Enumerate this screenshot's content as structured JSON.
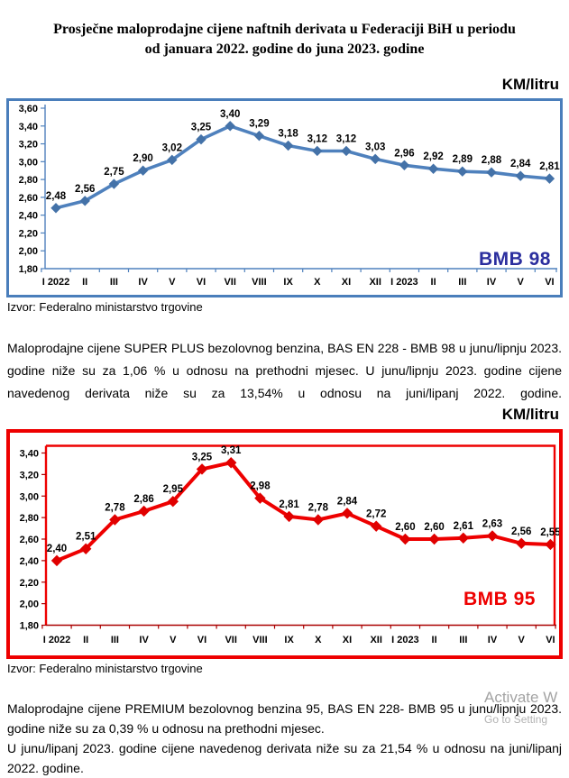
{
  "page": {
    "title_line1": "Prosječne maloprodajne cijene naftnih derivata u Federaciji BiH u periodu",
    "title_line2": "od januara 2022. godine do juna 2023. godine"
  },
  "paragraphs": {
    "p1": "Maloprodajne cijene SUPER PLUS bezolovnog benzina, BAS EN 228 - BMB 98 u junu/lipnju 2023. godine niže su za 1,06 % u odnosu na prethodni mjesec. U junu/lipnju 2023. godine cijene navedenog derivata niže su za 13,54% u odnosu na juni/lipanj 2022. godine.",
    "p2a": "Maloprodajne cijene PREMIUM bezolovnog benzina 95, BAS EN 228- BMB 95 u junu/lipnju 2023. godine niže su za 0,39 % u odnosu na prethodni mjesec.",
    "p2b": "U junu/lipanj 2023. godine cijene navedenog derivata niže su za 21,54 % u odnosu na juni/lipanj 2022. godine."
  },
  "watermark": {
    "line1": "Activate W",
    "line2": "Go to Setting"
  },
  "chart_data": [
    {
      "type": "line",
      "title": "BMB 98",
      "unit": "KM/litru",
      "source": "Izvor: Federalno ministarstvo trgovine",
      "categories": [
        "I 2022",
        "II",
        "III",
        "IV",
        "V",
        "VI",
        "VII",
        "VIII",
        "IX",
        "X",
        "XI",
        "XII",
        "I 2023",
        "II",
        "III",
        "IV",
        "V",
        "VI"
      ],
      "values": [
        2.48,
        2.56,
        2.75,
        2.9,
        3.02,
        3.25,
        3.4,
        3.29,
        3.18,
        3.12,
        3.12,
        3.03,
        2.96,
        2.92,
        2.89,
        2.88,
        2.84,
        2.81
      ],
      "value_labels": [
        "2,48",
        "2,56",
        "2,75",
        "2,90",
        "3,02",
        "3,25",
        "3,40",
        "3,29",
        "3,18",
        "3,12",
        "3,12",
        "3,03",
        "2,96",
        "2,92",
        "2,89",
        "2,88",
        "2,84",
        "2,81"
      ],
      "ytick_labels": [
        "3,60",
        "3,40",
        "3,20",
        "3,00",
        "2,80",
        "2,60",
        "2,40",
        "2,20",
        "2,00",
        "1,80"
      ],
      "ylim": [
        1.8,
        3.6
      ],
      "grid": false,
      "legend_position": "inside-bottom-right",
      "line_color": "#4f81bd",
      "marker_color": "#4472a8",
      "frame_color": "#4a7ebb",
      "axis_color": "#4f81bd",
      "series_label_color": "#2b2e9e"
    },
    {
      "type": "line",
      "title": "BMB 95",
      "unit": "KM/litru",
      "source": "Izvor: Federalno ministarstvo trgovine",
      "categories": [
        "I 2022",
        "II",
        "III",
        "IV",
        "V",
        "VI",
        "VII",
        "VIII",
        "IX",
        "X",
        "XI",
        "XII",
        "I 2023",
        "II",
        "III",
        "IV",
        "V",
        "VI"
      ],
      "values": [
        2.4,
        2.51,
        2.78,
        2.86,
        2.95,
        3.25,
        3.31,
        2.98,
        2.81,
        2.78,
        2.84,
        2.72,
        2.6,
        2.6,
        2.61,
        2.63,
        2.56,
        2.55
      ],
      "value_labels": [
        "2,40",
        "2,51",
        "2,78",
        "2,86",
        "2,95",
        "3,25",
        "3,31",
        "2,98",
        "2,81",
        "2,78",
        "2,84",
        "2,72",
        "2,60",
        "2,60",
        "2,61",
        "2,63",
        "2,56",
        "2,55"
      ],
      "ytick_labels": [
        "3,40",
        "3,20",
        "3,00",
        "2,80",
        "2,60",
        "2,40",
        "2,20",
        "2,00",
        "1,80"
      ],
      "ylim": [
        1.8,
        3.4
      ],
      "grid": false,
      "legend_position": "inside-bottom-right",
      "line_color": "#ee0000",
      "marker_color": "#e00000",
      "frame_color": "#ee0000",
      "axis_color": "#aa0000",
      "series_label_color": "#ee0000"
    }
  ]
}
